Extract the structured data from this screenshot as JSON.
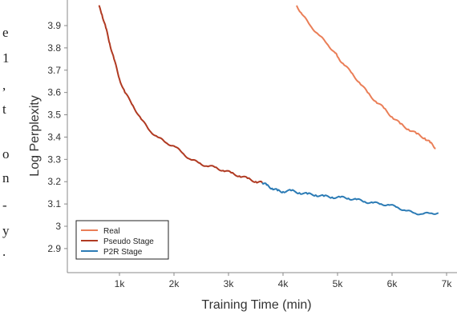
{
  "chart_data": {
    "type": "line",
    "title": "",
    "xlabel": "Training Time (min)",
    "ylabel": "Log Perplexity",
    "xlim": [
      0,
      7100
    ],
    "ylim": [
      2.8,
      3.99
    ],
    "grid": false,
    "legend_position": "bottom-left",
    "x_ticks": [
      {
        "value": 1000,
        "label": "1k"
      },
      {
        "value": 2000,
        "label": "2k"
      },
      {
        "value": 3000,
        "label": "3k"
      },
      {
        "value": 4000,
        "label": "4k"
      },
      {
        "value": 5000,
        "label": "5k"
      },
      {
        "value": 6000,
        "label": "6k"
      },
      {
        "value": 7000,
        "label": "7k"
      }
    ],
    "y_ticks": [
      {
        "value": 2.9,
        "label": "2.9"
      },
      {
        "value": 3.0,
        "label": "3"
      },
      {
        "value": 3.1,
        "label": "3.1"
      },
      {
        "value": 3.2,
        "label": "3.2"
      },
      {
        "value": 3.3,
        "label": "3.3"
      },
      {
        "value": 3.4,
        "label": "3.4"
      },
      {
        "value": 3.5,
        "label": "3.5"
      },
      {
        "value": 3.6,
        "label": "3.6"
      },
      {
        "value": 3.7,
        "label": "3.7"
      },
      {
        "value": 3.8,
        "label": "3.8"
      },
      {
        "value": 3.9,
        "label": "3.9"
      }
    ],
    "series": [
      {
        "name": "Real",
        "color": "#ea7e57",
        "x": [
          4250,
          4350,
          4500,
          4650,
          4800,
          4950,
          5000,
          5100,
          5250,
          5400,
          5550,
          5700,
          5850,
          6000,
          6150,
          6300,
          6450,
          6600,
          6700,
          6800
        ],
        "y": [
          3.99,
          3.95,
          3.9,
          3.86,
          3.82,
          3.78,
          3.76,
          3.73,
          3.69,
          3.645,
          3.6,
          3.56,
          3.53,
          3.49,
          3.46,
          3.435,
          3.415,
          3.395,
          3.375,
          3.35
        ]
      },
      {
        "name": "Pseudo Stage",
        "color": "#b03a22",
        "x": [
          620,
          680,
          750,
          820,
          900,
          1000,
          1100,
          1250,
          1400,
          1550,
          1700,
          1850,
          2000,
          2150,
          2300,
          2450,
          2600,
          2750,
          2900,
          3050,
          3200,
          3350,
          3500,
          3620
        ],
        "y": [
          3.99,
          3.95,
          3.89,
          3.82,
          3.75,
          3.66,
          3.6,
          3.54,
          3.48,
          3.43,
          3.4,
          3.375,
          3.36,
          3.33,
          3.3,
          3.285,
          3.27,
          3.265,
          3.25,
          3.24,
          3.225,
          3.215,
          3.2,
          3.195
        ]
      },
      {
        "name": "P2R Stage",
        "color": "#2b7bb5",
        "x": [
          3620,
          3700,
          3800,
          3900,
          4000,
          4150,
          4300,
          4450,
          4600,
          4750,
          4900,
          5050,
          5200,
          5350,
          5500,
          5650,
          5800,
          5950,
          6100,
          6250,
          6400,
          6550,
          6700,
          6850
        ],
        "y": [
          3.195,
          3.185,
          3.17,
          3.16,
          3.155,
          3.16,
          3.15,
          3.145,
          3.14,
          3.135,
          3.13,
          3.13,
          3.125,
          3.12,
          3.11,
          3.105,
          3.1,
          3.095,
          3.085,
          3.07,
          3.06,
          3.055,
          3.058,
          3.06
        ]
      }
    ]
  },
  "left_edge_fragments": [
    "e",
    "1",
    ",",
    "t",
    "o",
    "n",
    "-",
    "y",
    "."
  ]
}
